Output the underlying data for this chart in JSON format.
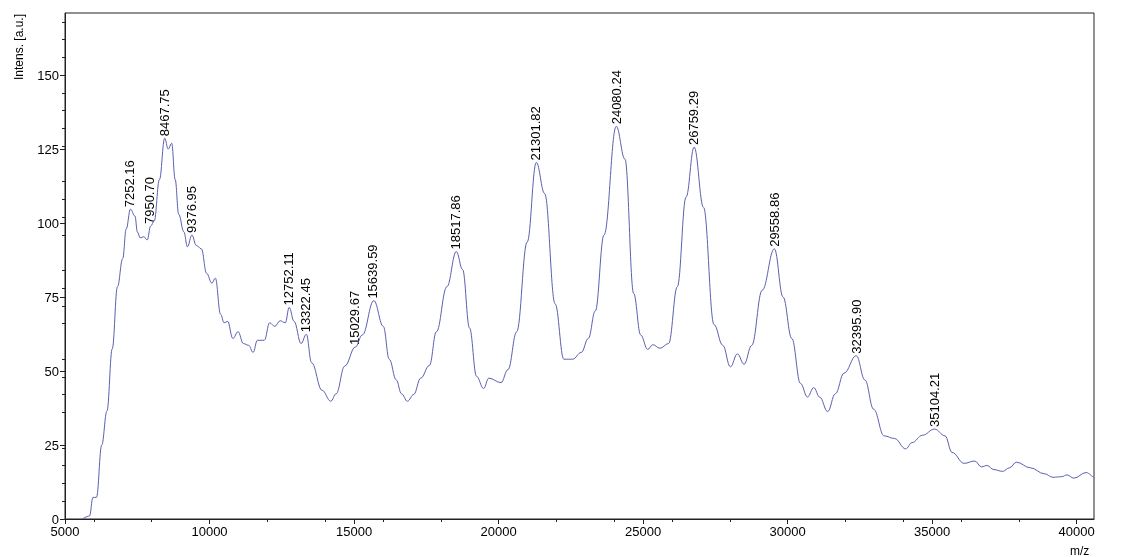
{
  "chart_data": {
    "type": "line",
    "xlabel": "m/z",
    "ylabel": "Intens. [a.u.]",
    "xlim": [
      5000,
      40600
    ],
    "xticks": [
      5000,
      10000,
      15000,
      20000,
      25000,
      30000,
      35000,
      40000
    ],
    "ylim": [
      0,
      171
    ],
    "yticks": [
      0,
      25,
      50,
      75,
      100,
      125,
      150
    ],
    "grid": false,
    "marker": "none",
    "line_style": "solid",
    "series": [
      {
        "color": "#5b5fb0",
        "x": [
          5605,
          5847,
          5968,
          6089,
          6270,
          6452,
          6634,
          6815,
          6997,
          7118,
          7263,
          7420,
          7505,
          7602,
          7723,
          7844,
          7965,
          8086,
          8267,
          8449,
          8570,
          8690,
          8812,
          8933,
          9114,
          9235,
          9392,
          9537,
          9718,
          9900,
          10081,
          10202,
          10383,
          10505,
          10626,
          10807,
          10989,
          11170,
          11352,
          11509,
          11655,
          11897,
          12079,
          12260,
          12442,
          12623,
          12756,
          12925,
          13168,
          13349,
          13531,
          13894,
          14196,
          14378,
          14680,
          15043,
          15285,
          15685,
          16012,
          16219,
          16460,
          16642,
          16847,
          17065,
          17306,
          17608,
          17850,
          18212,
          18538,
          18756,
          18997,
          19239,
          19481,
          19662,
          20085,
          20326,
          20628,
          20990,
          21305,
          21595,
          21957,
          22259,
          22561,
          22863,
          23105,
          23346,
          23648,
          24071,
          24373,
          24675,
          24917,
          25158,
          25339,
          25581,
          25883,
          26185,
          26487,
          26765,
          27091,
          27454,
          27756,
          28021,
          28263,
          28494,
          28759,
          29120,
          29542,
          29843,
          30145,
          30446,
          30687,
          30904,
          31109,
          31386,
          31651,
          31952,
          32374,
          32675,
          32976,
          33338,
          33699,
          34085,
          34302,
          34664,
          35085,
          35447,
          35688,
          36109,
          36471,
          36712,
          36893,
          37134,
          37435,
          37676,
          37917,
          38399,
          38880,
          39182,
          39484,
          39664,
          39905,
          40327,
          40568
        ],
        "values": [
          0,
          1,
          7.3,
          7.3,
          25,
          36.5,
          57.5,
          78.5,
          88,
          98,
          104.7,
          102.4,
          97,
          95,
          95.4,
          94.3,
          99,
          100.7,
          114.7,
          128.7,
          125,
          127,
          114.7,
          103,
          97,
          92,
          96,
          92.5,
          91.3,
          83,
          79.7,
          81.4,
          69.2,
          66.3,
          66.8,
          61,
          63.3,
          59.3,
          58.7,
          56.3,
          60.4,
          60.4,
          66.3,
          65.1,
          67,
          66.3,
          71.5,
          66.8,
          59.3,
          62.4,
          52.8,
          43.5,
          39.8,
          42.3,
          51.7,
          58.1,
          62.2,
          73.8,
          65.1,
          54,
          47,
          42.3,
          39.8,
          42.1,
          47.6,
          51.9,
          63.3,
          78.5,
          90.4,
          84.3,
          64.5,
          48.2,
          44.1,
          47.6,
          46.1,
          50.5,
          63.3,
          93.6,
          120.5,
          110,
          72.7,
          54,
          54,
          56.3,
          61,
          70.3,
          96,
          132.7,
          121.6,
          76.2,
          62.2,
          57.3,
          58.9,
          57.7,
          59.3,
          78.5,
          108.8,
          125.7,
          105.3,
          65.7,
          58.7,
          51.4,
          55.8,
          52.3,
          58.7,
          77.3,
          91.3,
          75,
          61,
          45.8,
          41.2,
          44.4,
          41.2,
          36.3,
          42.3,
          49.3,
          55.2,
          47,
          37.1,
          28.1,
          27.2,
          23.7,
          25.8,
          28.3,
          30.4,
          28.1,
          22.5,
          18.8,
          19.6,
          17.6,
          18.1,
          16.7,
          16.1,
          17.3,
          19.2,
          17.3,
          15.3,
          14.1,
          14.3,
          14.9,
          13.8,
          15.7,
          14.1
        ]
      }
    ],
    "annotations": [
      {
        "text": "7252.16",
        "x": 7252.16,
        "y": 104.7
      },
      {
        "text": "7950.70",
        "x": 7950.7,
        "y": 99
      },
      {
        "text": "8467.75",
        "x": 8467.75,
        "y": 128.7
      },
      {
        "text": "9376.95",
        "x": 9376.95,
        "y": 96
      },
      {
        "text": "12752.11",
        "x": 12752.11,
        "y": 71.5
      },
      {
        "text": "13322.45",
        "x": 13322.45,
        "y": 62.4
      },
      {
        "text": "15029.67",
        "x": 15029.67,
        "y": 58.1
      },
      {
        "text": "15639.59",
        "x": 15639.59,
        "y": 73.8
      },
      {
        "text": "18517.86",
        "x": 18517.86,
        "y": 90.4
      },
      {
        "text": "21301.82",
        "x": 21301.82,
        "y": 120.5
      },
      {
        "text": "24080.24",
        "x": 24080.24,
        "y": 132.7
      },
      {
        "text": "26759.29",
        "x": 26759.29,
        "y": 125.7
      },
      {
        "text": "29558.86",
        "x": 29558.86,
        "y": 91.3
      },
      {
        "text": "32395.90",
        "x": 32395.9,
        "y": 55.2
      },
      {
        "text": "35104.21",
        "x": 35104.21,
        "y": 30.4
      }
    ]
  }
}
